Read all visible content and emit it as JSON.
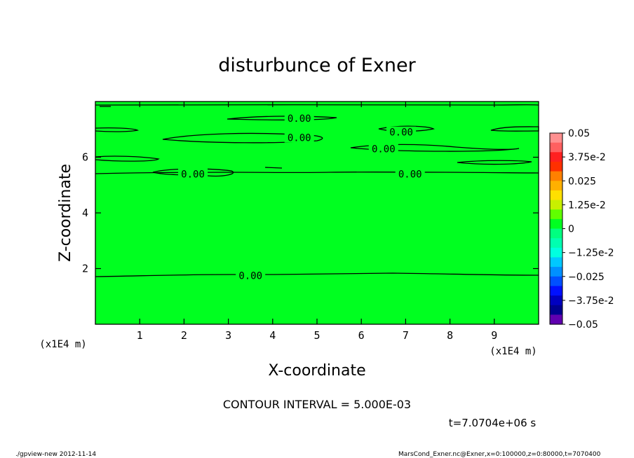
{
  "chart_data": {
    "type": "contour",
    "title": "disturbunce of Exner",
    "xlabel": "X-coordinate",
    "ylabel": "Z-coordinate",
    "x_unit": "(x1E4 m)",
    "y_unit": "(x1E4 m)",
    "xlim": [
      0,
      10
    ],
    "ylim": [
      0,
      8
    ],
    "x_ticks": [
      1,
      2,
      3,
      4,
      5,
      6,
      7,
      8,
      9
    ],
    "y_ticks": [
      2,
      4,
      6
    ],
    "field_color": "#00ff20",
    "contour_interval_text": "CONTOUR INTERVAL = 5.000E-03",
    "time_text": "t=7.0704e+06 s",
    "contour_labels": [
      {
        "text": "0.00",
        "x": 3.5,
        "z": 1.75
      },
      {
        "text": "0.00",
        "x": 7.1,
        "z": 5.4
      },
      {
        "text": "0.00",
        "x": 2.2,
        "z": 5.4
      },
      {
        "text": "0.00",
        "x": 4.6,
        "z": 7.4
      },
      {
        "text": "0.00",
        "x": 4.6,
        "z": 6.7
      },
      {
        "text": "0.00",
        "x": 6.9,
        "z": 6.9
      },
      {
        "text": "0.00",
        "x": 6.5,
        "z": 6.3
      }
    ],
    "colorbar": {
      "labels": [
        "0.05",
        "3.75e-2",
        "0.025",
        "1.25e-2",
        "0",
        "−1.25e-2",
        "−0.025",
        "−3.75e-2",
        "−0.05"
      ],
      "colors": [
        "#ff9090",
        "#ff6060",
        "#ff2020",
        "#ff3000",
        "#ff8000",
        "#ffb000",
        "#ffe000",
        "#c8f000",
        "#60ff00",
        "#00ff20",
        "#00ff80",
        "#00ffb0",
        "#00ffe0",
        "#00c8ff",
        "#0090ff",
        "#0050ff",
        "#0010ff",
        "#0000c0",
        "#000090",
        "#6000b0"
      ]
    }
  },
  "footer": {
    "left": "./gpview-new  2012-11-14",
    "right": "MarsCond_Exner.nc@Exner,x=0:100000,z=0:80000,t=7070400"
  }
}
